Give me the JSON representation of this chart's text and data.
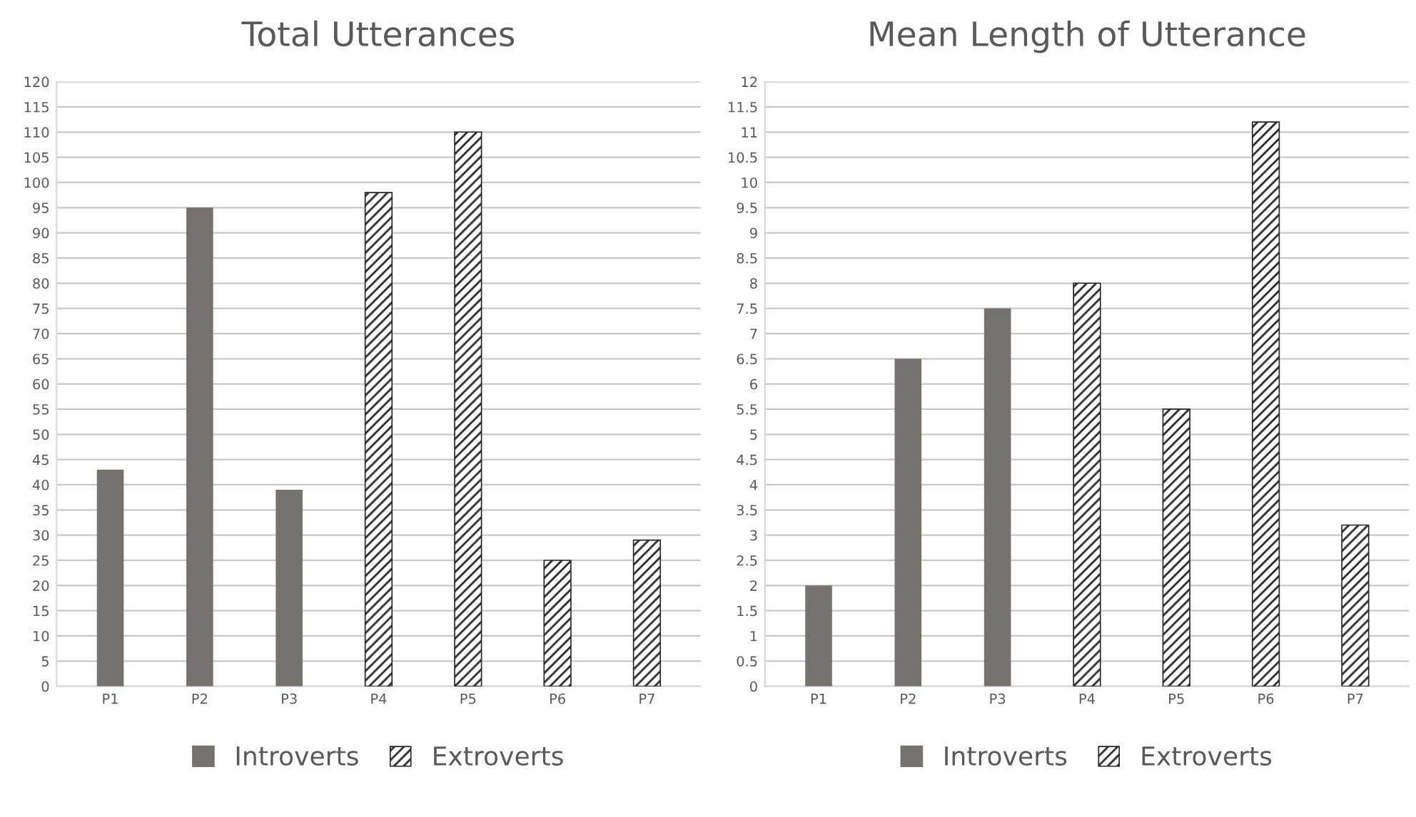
{
  "chart_data": [
    {
      "type": "bar",
      "title": "Total Utterances",
      "categories": [
        "P1",
        "P2",
        "P3",
        "P4",
        "P5",
        "P6",
        "P7"
      ],
      "series": [
        {
          "name": "Introverts",
          "color": "#767171",
          "values": [
            43,
            95,
            39,
            null,
            null,
            null,
            null
          ]
        },
        {
          "name": "Extroverts",
          "color": "#262626",
          "values": [
            null,
            null,
            null,
            98,
            110,
            25,
            29
          ]
        }
      ],
      "ylim": [
        0,
        120
      ],
      "yticks": [
        0,
        5,
        10,
        15,
        20,
        25,
        30,
        35,
        40,
        45,
        50,
        55,
        60,
        65,
        70,
        75,
        80,
        85,
        90,
        95,
        100,
        105,
        110,
        115,
        120
      ],
      "grid": "y",
      "legend": "bottom"
    },
    {
      "type": "bar",
      "title": "Mean Length of Utterance",
      "categories": [
        "P1",
        "P2",
        "P3",
        "P4",
        "P5",
        "P6",
        "P7"
      ],
      "series": [
        {
          "name": "Introverts",
          "color": "#767171",
          "values": [
            2,
            6.5,
            7.5,
            null,
            null,
            null,
            null
          ]
        },
        {
          "name": "Extroverts",
          "color": "#262626",
          "values": [
            null,
            null,
            null,
            8,
            5.5,
            11.2,
            3.2
          ]
        }
      ],
      "ylim": [
        0,
        12
      ],
      "yticks": [
        0,
        0.5,
        1,
        1.5,
        2,
        2.5,
        3,
        3.5,
        4,
        4.5,
        5,
        5.5,
        6,
        6.5,
        7,
        7.5,
        8,
        8.5,
        9,
        9.5,
        10,
        10.5,
        11,
        11.5,
        12
      ],
      "grid": "y",
      "legend": "bottom"
    }
  ]
}
